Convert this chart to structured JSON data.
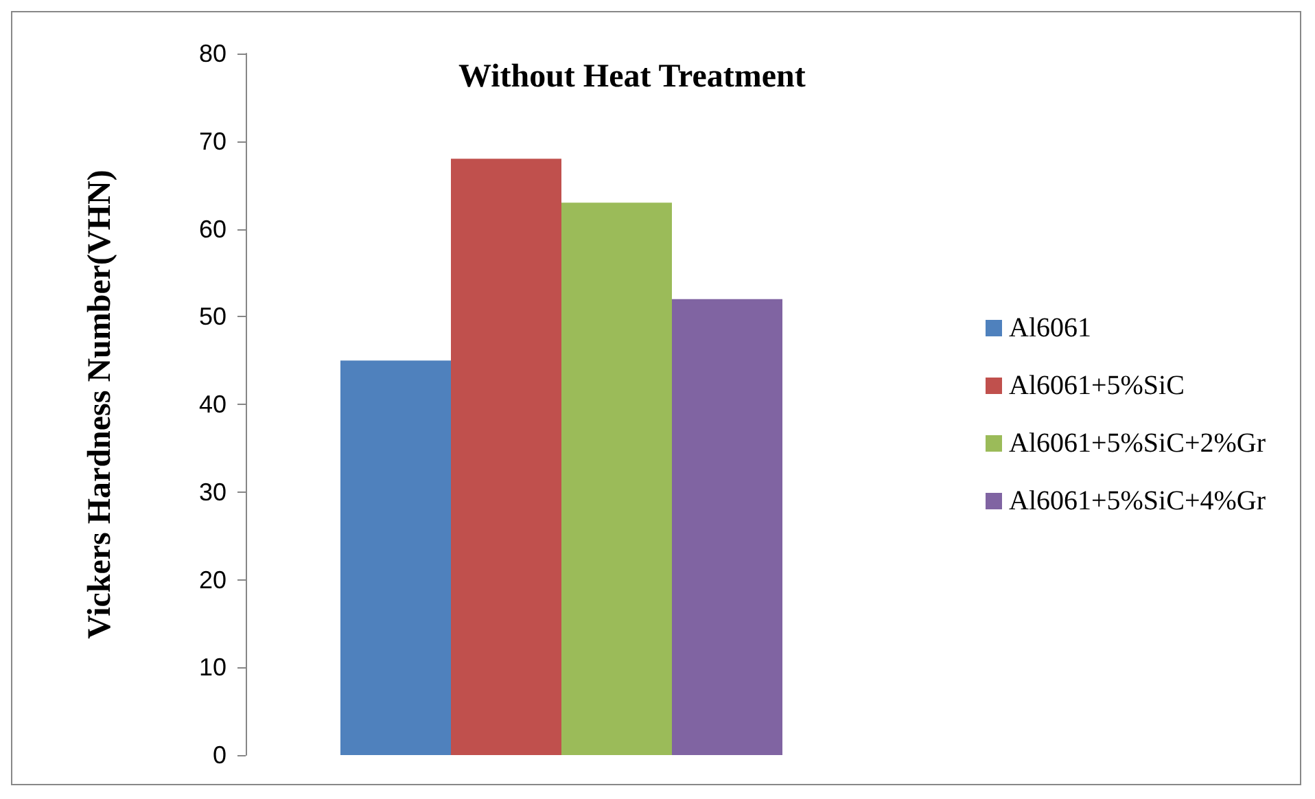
{
  "chart_data": {
    "type": "bar",
    "title": "Without Heat Treatment",
    "ylabel": "Vickers Hardness Number(VHN)",
    "categories": [
      null
    ],
    "series": [
      {
        "name": "Al6061",
        "color": "#4f81bd",
        "values": [
          45
        ]
      },
      {
        "name": "Al6061+5%SiC",
        "color": "#c0504d",
        "values": [
          68
        ]
      },
      {
        "name": "Al6061+5%SiC+2%Gr",
        "color": "#9bbb59",
        "values": [
          63
        ]
      },
      {
        "name": "Al6061+5%SiC+4%Gr",
        "color": "#8064a2",
        "values": [
          52
        ]
      }
    ],
    "ylim": [
      0,
      80
    ],
    "yticks": [
      0,
      10,
      20,
      30,
      40,
      50,
      60,
      70,
      80
    ],
    "grid": false,
    "legend": "right"
  }
}
